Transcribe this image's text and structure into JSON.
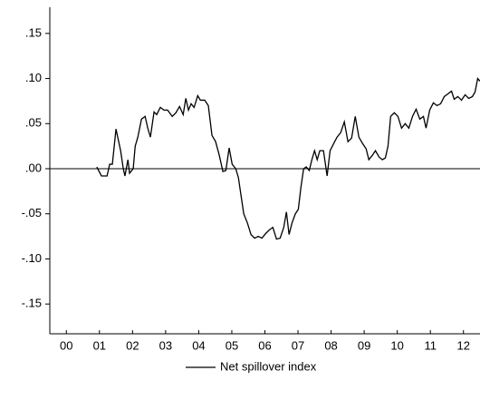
{
  "chart_data": {
    "type": "line",
    "xlim": [
      2000,
      2013
    ],
    "xticks": [
      {
        "value": 2000.5,
        "label": "00"
      },
      {
        "value": 2001.5,
        "label": "01"
      },
      {
        "value": 2002.5,
        "label": "02"
      },
      {
        "value": 2003.5,
        "label": "03"
      },
      {
        "value": 2004.5,
        "label": "04"
      },
      {
        "value": 2005.5,
        "label": "05"
      },
      {
        "value": 2006.5,
        "label": "06"
      },
      {
        "value": 2007.5,
        "label": "07"
      },
      {
        "value": 2008.5,
        "label": "08"
      },
      {
        "value": 2009.5,
        "label": "09"
      },
      {
        "value": 2010.5,
        "label": "10"
      },
      {
        "value": 2011.5,
        "label": "11"
      },
      {
        "value": 2012.5,
        "label": "12"
      }
    ],
    "ylim": [
      -0.183,
      0.179
    ],
    "yticks": [
      {
        "value": 0.15,
        "label": ".15"
      },
      {
        "value": 0.1,
        "label": ".10"
      },
      {
        "value": 0.05,
        "label": ".05"
      },
      {
        "value": 0,
        "label": ".00"
      },
      {
        "value": -0.05,
        "label": "-.05"
      },
      {
        "value": -0.1,
        "label": "-.10"
      },
      {
        "value": -0.15,
        "label": "-.15"
      }
    ],
    "x": [
      2001.42,
      2001.56,
      2001.73,
      2001.81,
      2001.89,
      2002.0,
      2002.14,
      2002.22,
      2002.27,
      2002.36,
      2002.41,
      2002.52,
      2002.58,
      2002.66,
      2002.77,
      2002.88,
      2002.96,
      2003.04,
      2003.15,
      2003.23,
      2003.34,
      2003.45,
      2003.56,
      2003.7,
      2003.81,
      2003.92,
      2004.03,
      2004.11,
      2004.19,
      2004.27,
      2004.36,
      2004.47,
      2004.55,
      2004.68,
      2004.79,
      2004.9,
      2005.01,
      2005.12,
      2005.23,
      2005.32,
      2005.42,
      2005.51,
      2005.62,
      2005.7,
      2005.78,
      2005.86,
      2005.97,
      2006.08,
      2006.19,
      2006.3,
      2006.41,
      2006.52,
      2006.63,
      2006.74,
      2006.85,
      2006.96,
      2007.07,
      2007.15,
      2007.23,
      2007.32,
      2007.42,
      2007.51,
      2007.59,
      2007.67,
      2007.75,
      2007.84,
      2007.92,
      2008.0,
      2008.08,
      2008.16,
      2008.27,
      2008.38,
      2008.47,
      2008.58,
      2008.68,
      2008.79,
      2008.9,
      2009.01,
      2009.12,
      2009.23,
      2009.34,
      2009.45,
      2009.56,
      2009.64,
      2009.75,
      2009.84,
      2009.95,
      2010.05,
      2010.14,
      2010.22,
      2010.3,
      2010.41,
      2010.52,
      2010.63,
      2010.74,
      2010.85,
      2010.96,
      2011.07,
      2011.18,
      2011.29,
      2011.37,
      2011.48,
      2011.59,
      2011.7,
      2011.81,
      2011.92,
      2012.03,
      2012.14,
      2012.22,
      2012.33,
      2012.44,
      2012.55,
      2012.66,
      2012.77,
      2012.85,
      2012.93,
      2013.0
    ],
    "series": [
      {
        "name": "Net spillover index",
        "color": "#000000",
        "values": [
          0.002,
          -0.008,
          -0.008,
          0.005,
          0.005,
          0.044,
          0.02,
          0.0,
          -0.008,
          0.01,
          -0.005,
          0.0,
          0.025,
          0.035,
          0.055,
          0.058,
          0.045,
          0.035,
          0.063,
          0.06,
          0.068,
          0.065,
          0.065,
          0.058,
          0.062,
          0.069,
          0.06,
          0.078,
          0.065,
          0.072,
          0.068,
          0.081,
          0.076,
          0.076,
          0.07,
          0.037,
          0.03,
          0.015,
          -0.003,
          -0.002,
          0.023,
          0.005,
          0.0,
          -0.01,
          -0.03,
          -0.05,
          -0.06,
          -0.073,
          -0.077,
          -0.075,
          -0.077,
          -0.072,
          -0.068,
          -0.065,
          -0.078,
          -0.077,
          -0.065,
          -0.048,
          -0.073,
          -0.06,
          -0.05,
          -0.045,
          -0.02,
          0.0,
          0.002,
          -0.002,
          0.01,
          0.02,
          0.01,
          0.02,
          0.02,
          -0.008,
          0.02,
          0.028,
          0.035,
          0.04,
          0.052,
          0.03,
          0.034,
          0.058,
          0.035,
          0.028,
          0.022,
          0.01,
          0.015,
          0.02,
          0.013,
          0.01,
          0.012,
          0.025,
          0.058,
          0.062,
          0.058,
          0.045,
          0.05,
          0.045,
          0.058,
          0.066,
          0.055,
          0.058,
          0.045,
          0.065,
          0.073,
          0.07,
          0.072,
          0.08,
          0.083,
          0.086,
          0.077,
          0.08,
          0.076,
          0.082,
          0.078,
          0.08,
          0.085,
          0.1,
          0.097
        ]
      }
    ]
  }
}
